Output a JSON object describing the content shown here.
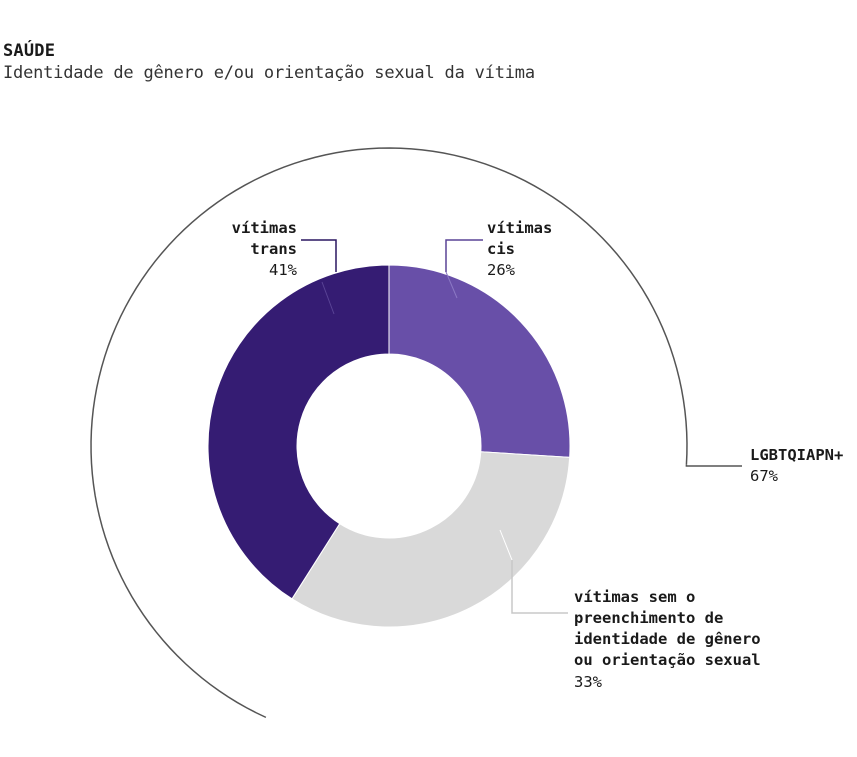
{
  "header": {
    "section_title": "SAÚDE",
    "subtitle": "Identidade de gênero e/ou orientação sexual da vítima"
  },
  "chart_data": {
    "type": "pie",
    "subtype": "donut",
    "slices": [
      {
        "label": "vítimas cis",
        "value": 26,
        "display": "26%",
        "color": "#684fa8"
      },
      {
        "label": "vítimas sem o preenchimento de identidade de gênero ou orientação sexual",
        "value": 33,
        "display": "33%",
        "color": "#d9d9d9"
      },
      {
        "label": "vítimas trans",
        "value": 41,
        "display": "41%",
        "color": "#351c73"
      }
    ],
    "group": {
      "label": "LGBTQIAPN+",
      "value": 67,
      "display": "67%",
      "includes": [
        "vítimas cis",
        "vítimas trans"
      ]
    }
  },
  "labels": {
    "cis": {
      "lines": [
        "vítimas",
        "cis"
      ],
      "pct": "26%"
    },
    "trans": {
      "lines": [
        "vítimas",
        "trans"
      ],
      "pct": "41%"
    },
    "unknown": {
      "lines": [
        "vítimas sem o",
        "preenchimento de",
        "identidade de gênero",
        "ou orientação sexual"
      ],
      "pct": "33%"
    },
    "group": {
      "lines": [
        "LGBTQIAPN+"
      ],
      "pct": "67%"
    }
  },
  "colors": {
    "cis": "#684fa8",
    "trans": "#351c73",
    "unknown": "#d9d9d9",
    "group_arc": "#555555",
    "leader_unknown": "#c8c8c8"
  }
}
